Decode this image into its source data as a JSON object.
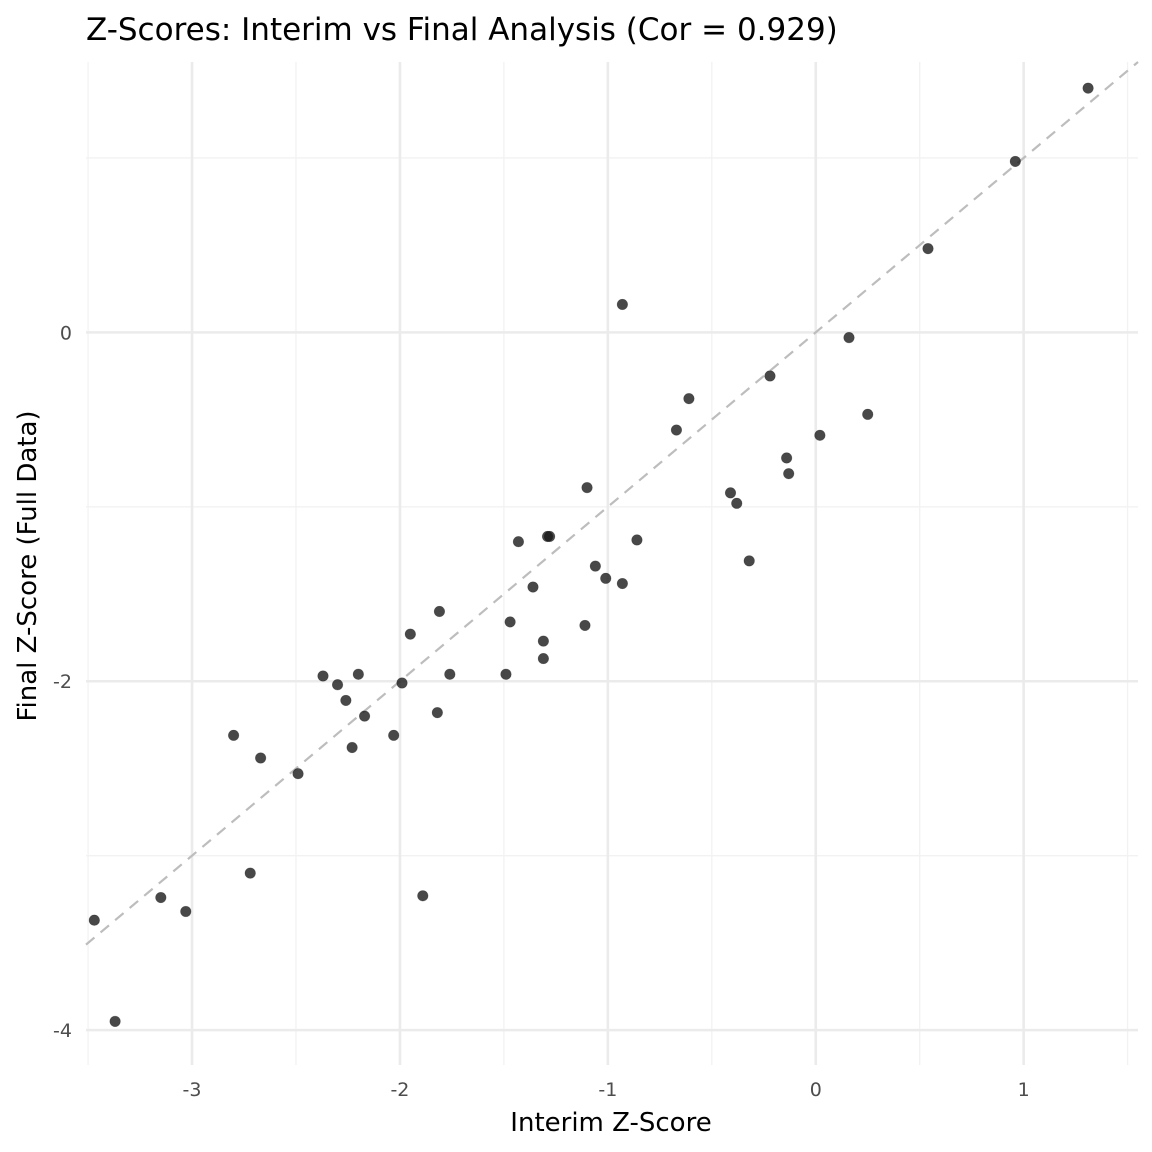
{
  "chart_data": {
    "type": "scatter",
    "title": "Z-Scores: Interim vs Final Analysis (Cor = 0.929)",
    "xlabel": "Interim Z-Score",
    "ylabel": "Final Z-Score (Full Data)",
    "xlim": [
      -3.51,
      1.55
    ],
    "ylim": [
      -4.2,
      1.55
    ],
    "x_ticks": [
      -3,
      -2,
      -1,
      0,
      1
    ],
    "x_tick_labels": [
      "-3",
      "-2",
      "-1",
      "0",
      "1"
    ],
    "y_ticks": [
      -4,
      -2,
      0
    ],
    "y_tick_labels": [
      "-4",
      "-2",
      "0"
    ],
    "x_minor_ticks": [
      -3.5,
      -2.5,
      -1.5,
      -0.5,
      0.5,
      1.5
    ],
    "y_minor_ticks": [
      -3,
      -1,
      1
    ],
    "grid": true,
    "legend": "none",
    "reference_line": {
      "style": "dashed",
      "color": "#bdbdbd",
      "slope": 1,
      "intercept": 0
    },
    "point_color": "#1a1a1a",
    "x": [
      -3.47,
      -3.37,
      -3.15,
      -3.03,
      -2.8,
      -2.72,
      -2.67,
      -2.49,
      -2.37,
      -2.3,
      -2.26,
      -2.23,
      -2.2,
      -2.17,
      -2.03,
      -1.99,
      -1.95,
      -1.89,
      -1.82,
      -1.81,
      -1.76,
      -1.49,
      -1.47,
      -1.43,
      -1.36,
      -1.31,
      -1.31,
      -1.29,
      -1.28,
      -1.11,
      -1.1,
      -1.06,
      -1.01,
      -0.93,
      -0.93,
      -0.86,
      -0.67,
      -0.61,
      -0.41,
      -0.38,
      -0.32,
      -0.22,
      -0.14,
      -0.13,
      0.02,
      0.16,
      0.25,
      0.54,
      0.96,
      1.31
    ],
    "y": [
      -3.37,
      -3.95,
      -3.24,
      -3.32,
      -2.31,
      -3.1,
      -2.44,
      -2.53,
      -1.97,
      -2.02,
      -2.11,
      -2.38,
      -1.96,
      -2.2,
      -2.31,
      -2.01,
      -1.73,
      -3.23,
      -2.18,
      -1.6,
      -1.96,
      -1.96,
      -1.66,
      -1.2,
      -1.46,
      -1.77,
      -1.87,
      -1.17,
      -1.17,
      -1.68,
      -0.89,
      -1.34,
      -1.41,
      -1.44,
      0.16,
      -1.19,
      -0.56,
      -0.38,
      -0.92,
      -0.98,
      -1.31,
      -0.25,
      -0.72,
      -0.81,
      -0.59,
      -0.03,
      -0.47,
      0.48,
      0.98,
      1.4
    ]
  }
}
